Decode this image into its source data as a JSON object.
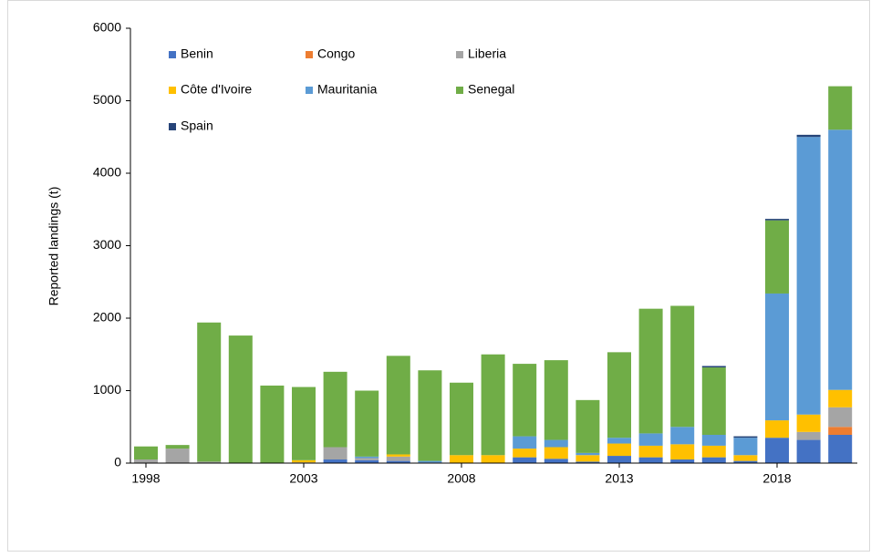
{
  "chart_data": {
    "type": "stacked_bar",
    "y_label": "Reported landings (t)",
    "categories": [
      "1998",
      null,
      null,
      null,
      null,
      "2003",
      null,
      null,
      null,
      null,
      "2008",
      null,
      null,
      null,
      null,
      "2013",
      null,
      null,
      null,
      null,
      "2018",
      null,
      null
    ],
    "series": [
      {
        "name": "Benin",
        "color": "#4472c4",
        "values": [
          0,
          0,
          0,
          0,
          0,
          0,
          50,
          40,
          30,
          10,
          0,
          0,
          80,
          60,
          20,
          100,
          80,
          50,
          80,
          30,
          350,
          320,
          390
        ]
      },
      {
        "name": "Congo",
        "color": "#ed7d31",
        "values": [
          0,
          0,
          0,
          0,
          0,
          0,
          0,
          0,
          0,
          0,
          0,
          0,
          0,
          0,
          0,
          0,
          0,
          0,
          0,
          0,
          0,
          0,
          110
        ]
      },
      {
        "name": "Liberia",
        "color": "#a5a5a5",
        "values": [
          50,
          200,
          20,
          0,
          0,
          10,
          170,
          30,
          60,
          0,
          0,
          0,
          0,
          0,
          0,
          0,
          0,
          0,
          0,
          0,
          0,
          110,
          270
        ]
      },
      {
        "name": "Côte d'Ivoire",
        "color": "#ffc000",
        "values": [
          0,
          0,
          0,
          0,
          0,
          30,
          0,
          0,
          30,
          0,
          110,
          110,
          120,
          160,
          90,
          170,
          160,
          210,
          160,
          80,
          240,
          240,
          240
        ]
      },
      {
        "name": "Mauritania",
        "color": "#5b9bd5",
        "values": [
          0,
          0,
          0,
          0,
          0,
          0,
          0,
          20,
          0,
          20,
          0,
          0,
          170,
          100,
          30,
          80,
          170,
          240,
          150,
          240,
          1750,
          3830,
          3590
        ]
      },
      {
        "name": "Senegal",
        "color": "#70ad47",
        "values": [
          180,
          50,
          1920,
          1760,
          1070,
          1010,
          1040,
          910,
          1360,
          1250,
          1000,
          1390,
          1000,
          1100,
          730,
          1180,
          1720,
          1670,
          930,
          0,
          1010,
          0,
          600
        ]
      },
      {
        "name": "Spain",
        "color": "#264478",
        "values": [
          0,
          0,
          0,
          0,
          0,
          0,
          0,
          0,
          0,
          0,
          0,
          0,
          0,
          0,
          0,
          0,
          0,
          0,
          20,
          20,
          20,
          30,
          0
        ]
      }
    ],
    "ylim": [
      0,
      6000
    ],
    "yticks": [
      0,
      1000,
      2000,
      3000,
      4000,
      5000,
      6000
    ],
    "grid": false,
    "legend": "top-left"
  }
}
